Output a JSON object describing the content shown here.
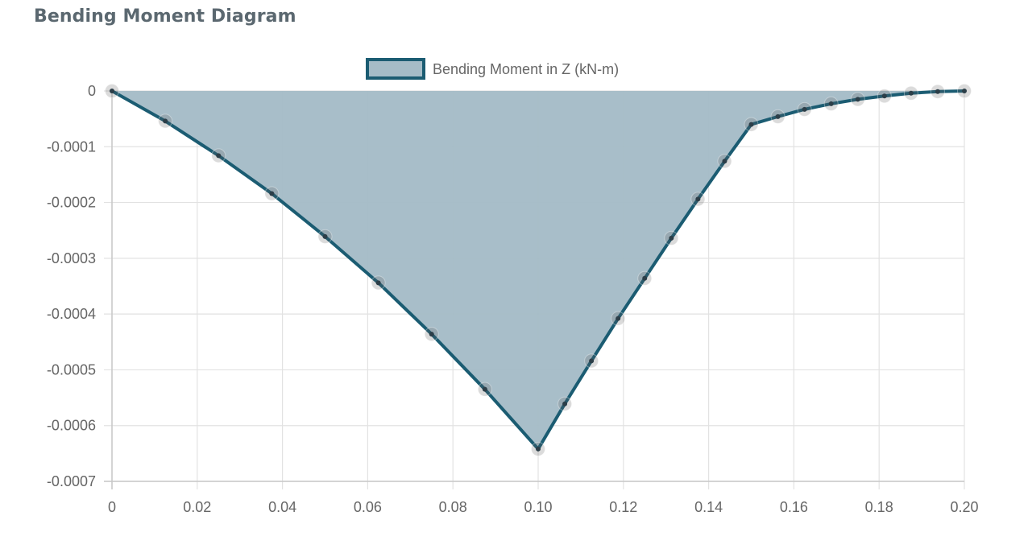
{
  "page": {
    "title": "Bending Moment Diagram"
  },
  "chart_data": {
    "type": "area",
    "title": "",
    "xlabel": "",
    "ylabel": "",
    "xlim": [
      0,
      0.2
    ],
    "ylim": [
      -0.0007,
      0
    ],
    "x_ticks": [
      "0",
      "0.02",
      "0.04",
      "0.06",
      "0.08",
      "0.10",
      "0.12",
      "0.14",
      "0.16",
      "0.18",
      "0.20"
    ],
    "y_ticks": [
      "0",
      "-0.0001",
      "-0.0002",
      "-0.0003",
      "-0.0004",
      "-0.0005",
      "-0.0006",
      "-0.0007"
    ],
    "grid": true,
    "legend_position": "top-center",
    "series": [
      {
        "name": "Bending Moment in Z (kN-m)",
        "color": "#1b5c72",
        "fill_color": "#a5bcc7",
        "x": [
          0,
          0.0125,
          0.025,
          0.0375,
          0.05,
          0.0625,
          0.075,
          0.0875,
          0.1,
          0.10625,
          0.1125,
          0.11875,
          0.125,
          0.13125,
          0.1375,
          0.14375,
          0.15,
          0.15625,
          0.1625,
          0.16875,
          0.175,
          0.18125,
          0.1875,
          0.19375,
          0.2
        ],
        "y": [
          0,
          -5.4e-05,
          -0.000116,
          -0.000184,
          -0.000261,
          -0.000344,
          -0.000436,
          -0.000535,
          -0.000642,
          -0.000561,
          -0.000484,
          -0.000408,
          -0.000336,
          -0.000264,
          -0.000194,
          -0.000126,
          -6e-05,
          -4.6e-05,
          -3.3e-05,
          -2.3e-05,
          -1.5e-05,
          -9e-06,
          -4e-06,
          -1e-06,
          0
        ]
      }
    ]
  }
}
